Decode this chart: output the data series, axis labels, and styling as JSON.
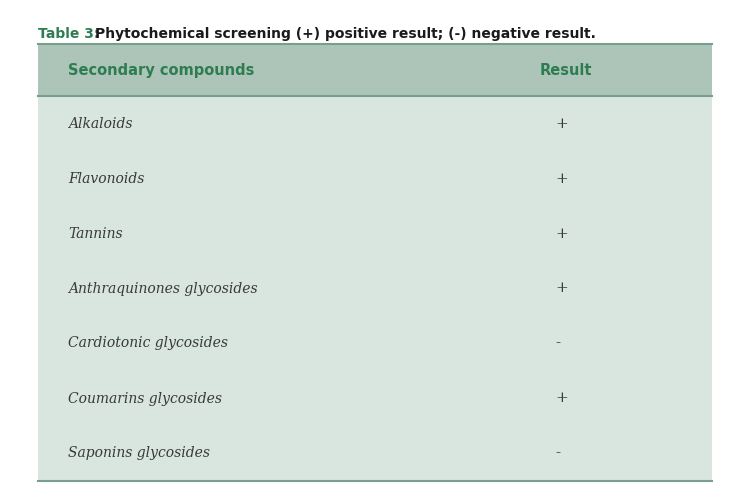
{
  "title_prefix": "Table 3: ",
  "title_bold": "Phytochemical screening (+) positive result; (-) negative result.",
  "header": [
    "Secondary compounds",
    "Result"
  ],
  "rows": [
    [
      "Alkaloids",
      "+"
    ],
    [
      "Flavonoids",
      "+"
    ],
    [
      "Tannins",
      "+"
    ],
    [
      "Anthraquinones glycosides",
      "+"
    ],
    [
      "Cardiotonic glycosides",
      "-"
    ],
    [
      "Coumarins glycosides",
      "+"
    ],
    [
      "Saponins glycosides",
      "-"
    ]
  ],
  "bg_color": "#ffffff",
  "table_bg": "#d8e6df",
  "header_bg": "#adc5b8",
  "border_color": "#7a9e8e",
  "title_color_prefix": "#2e7d52",
  "title_color_bold": "#1a1a1a",
  "header_text_color": "#2e7d52",
  "cell_text_color": "#3a3a3a",
  "fig_width": 7.5,
  "fig_height": 4.99,
  "dpi": 100
}
